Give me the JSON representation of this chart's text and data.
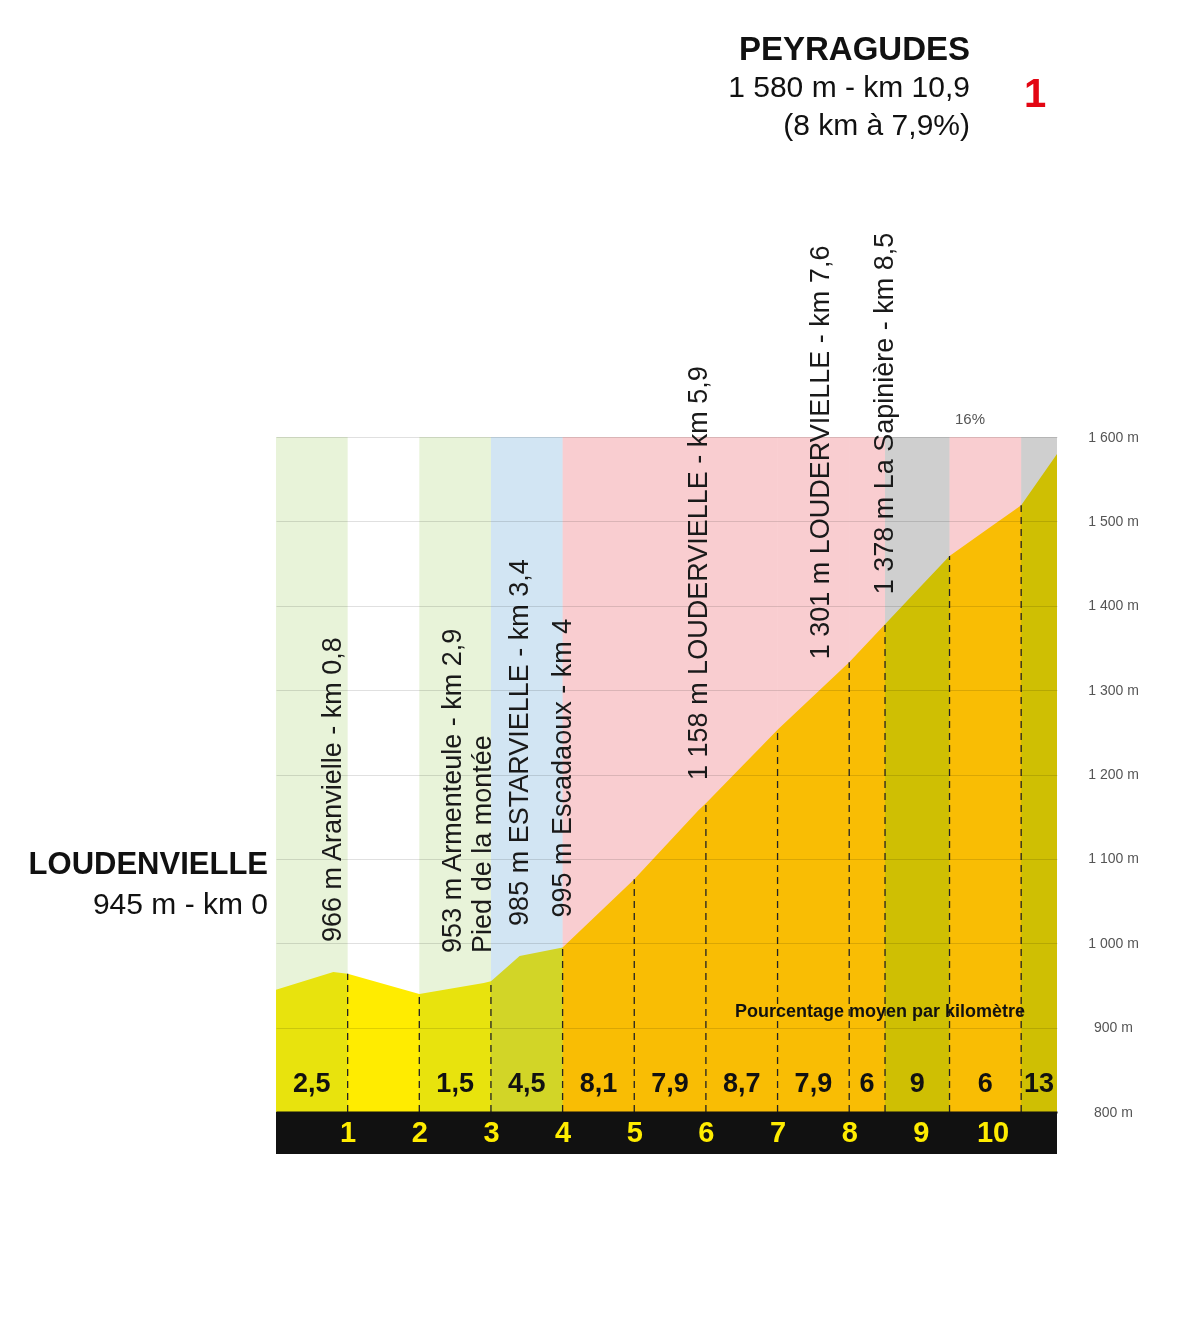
{
  "chart_data": {
    "type": "area",
    "x": [
      0,
      0.8,
      1,
      2,
      2.9,
      3,
      3.4,
      4,
      5,
      5.9,
      6,
      7,
      7.6,
      8,
      8.5,
      9,
      9.4,
      10,
      10.4,
      10.9
    ],
    "series": [
      {
        "color": "#ffec00",
        "values": [
          945,
          966,
          964,
          940,
          953,
          955,
          985,
          995,
          1076,
          1158,
          1166,
          1253,
          1301,
          1333,
          1378,
          1423,
          1459,
          1495,
          1519,
          1580
        ]
      }
    ],
    "xlim": [
      0,
      10.9
    ],
    "xticks": [
      1,
      2,
      3,
      4,
      5,
      6,
      7,
      8,
      9,
      10
    ],
    "ylim": [
      800,
      1600
    ],
    "yticks": [
      {
        "value": 800,
        "label": "800 m"
      },
      {
        "value": 900,
        "label": "900 m"
      },
      {
        "value": 1000,
        "label": "1 000 m"
      },
      {
        "value": 1100,
        "label": "1 100 m"
      },
      {
        "value": 1200,
        "label": "1 200 m"
      },
      {
        "value": 1300,
        "label": "1 300 m"
      },
      {
        "value": 1400,
        "label": "1 400 m"
      },
      {
        "value": 1500,
        "label": "1 500 m"
      },
      {
        "value": 1600,
        "label": "1 600 m"
      }
    ],
    "grid": "y",
    "bands": [
      {
        "axis": "x",
        "from": 0,
        "to": 1,
        "label": "2,5",
        "color": "#8cc43f"
      },
      {
        "axis": "x",
        "from": 2,
        "to": 3,
        "label": "1,5",
        "color": "#8cc43f"
      },
      {
        "axis": "x",
        "from": 3,
        "to": 4,
        "label": "4,5",
        "color": "#1d7fc1"
      },
      {
        "axis": "x",
        "from": 4,
        "to": 5,
        "label": "8,1",
        "color": "#e30613"
      },
      {
        "axis": "x",
        "from": 5,
        "to": 6,
        "label": "7,9",
        "color": "#e30613"
      },
      {
        "axis": "x",
        "from": 6,
        "to": 7,
        "label": "8,7",
        "color": "#e30613"
      },
      {
        "axis": "x",
        "from": 7,
        "to": 8,
        "label": "7,9",
        "color": "#e30613"
      },
      {
        "axis": "x",
        "from": 8,
        "to": 8.5,
        "label": "6",
        "color": "#e30613"
      },
      {
        "axis": "x",
        "from": 8.5,
        "to": 9.4,
        "label": "9",
        "color": "#111111"
      },
      {
        "axis": "x",
        "from": 9.4,
        "to": 10.4,
        "label": "6",
        "color": "#e30613"
      },
      {
        "axis": "x",
        "from": 10.4,
        "to": 10.9,
        "label": "13",
        "color": "#111111"
      }
    ],
    "ref_lines": [
      {
        "axis": "x",
        "value": 1,
        "line_style": "dashed",
        "color": "#222222"
      },
      {
        "axis": "x",
        "value": 2,
        "line_style": "dashed",
        "color": "#222222"
      },
      {
        "axis": "x",
        "value": 3,
        "line_style": "dashed",
        "color": "#222222"
      },
      {
        "axis": "x",
        "value": 4,
        "line_style": "dashed",
        "color": "#222222"
      },
      {
        "axis": "x",
        "value": 5,
        "line_style": "dashed",
        "color": "#222222"
      },
      {
        "axis": "x",
        "value": 6,
        "line_style": "dashed",
        "color": "#222222"
      },
      {
        "axis": "x",
        "value": 7,
        "line_style": "dashed",
        "color": "#222222"
      },
      {
        "axis": "x",
        "value": 8,
        "line_style": "dashed",
        "color": "#222222"
      },
      {
        "axis": "x",
        "value": 8.5,
        "line_style": "dashed",
        "color": "#222222"
      },
      {
        "axis": "x",
        "value": 9.4,
        "line_style": "dashed",
        "color": "#222222"
      },
      {
        "axis": "x",
        "value": 10.4,
        "line_style": "dashed",
        "color": "#222222"
      }
    ],
    "annotations": [
      {
        "text": "LOUDENVIELLE\n945 m - km 0",
        "x": 0,
        "y": 945
      },
      {
        "text": "966 m Aranvielle - km 0,8",
        "x": 0.8,
        "y": 966
      },
      {
        "text": "953 m Armenteule - km 2,9\nPied de la montée",
        "x": 2.9,
        "y": 953
      },
      {
        "text": "985 m ESTARVIELLE - km 3,4",
        "x": 3.4,
        "y": 985
      },
      {
        "text": "995 m Escadaoux - km 4",
        "x": 4,
        "y": 995
      },
      {
        "text": "1 158 m LOUDERVIELLE - km 5,9",
        "x": 5.9,
        "y": 1158
      },
      {
        "text": "1 301 m LOUDERVIELLE - km 7,6",
        "x": 7.6,
        "y": 1301
      },
      {
        "text": "1 378 m La Sapinière - km 8,5",
        "x": 8.5,
        "y": 1378
      },
      "PEYRAGUDES\n1 580 m - km 10,9\n(8 km à 7,9%)",
      "1",
      "16%",
      "Pourcentage moyen par kilomètre"
    ]
  }
}
